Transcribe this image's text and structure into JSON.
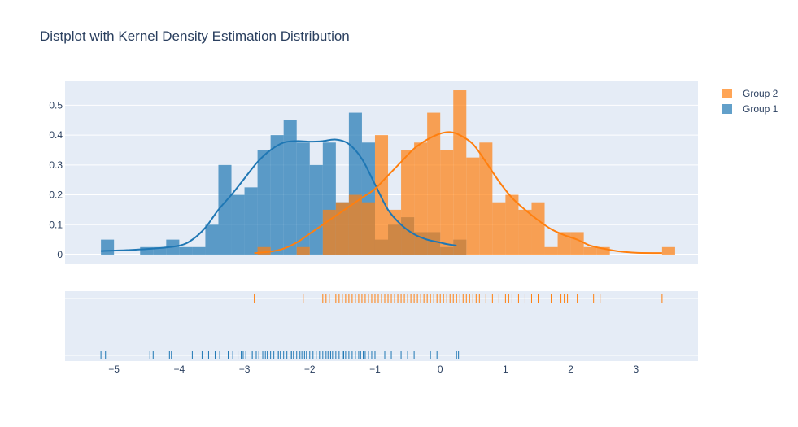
{
  "colors": {
    "background": "#ffffff",
    "plot_bg": "#e5ecf6",
    "grid": "#ffffff",
    "text": "#2a3f5f",
    "group1": "#1f77b4",
    "group2": "#ff7f0e"
  },
  "chart_data": {
    "type": "distplot",
    "title": "Distplot with Kernel Density Estimation Distribution",
    "xlabel": "",
    "ylabel": "",
    "xlim": [
      -5.75,
      3.95
    ],
    "ylim": [
      -0.03,
      0.58
    ],
    "x_ticks": [
      -5,
      -4,
      -3,
      -2,
      -1,
      0,
      1,
      2,
      3
    ],
    "x_tick_labels": [
      "−5",
      "−4",
      "−3",
      "−2",
      "−1",
      "0",
      "1",
      "2",
      "3"
    ],
    "y_ticks": [
      0,
      0.1,
      0.2,
      0.3,
      0.4,
      0.5
    ],
    "y_tick_labels": [
      "0",
      "0.1",
      "0.2",
      "0.3",
      "0.4",
      "0.5"
    ],
    "grid": true,
    "legend_position": "top-right",
    "legend": [
      "Group 2",
      "Group 1"
    ],
    "bin_size": 0.2,
    "series": [
      {
        "name": "Group 1",
        "color": "#1f77b4",
        "hist_bins": [
          [
            -5.2,
            -5.0,
            0.05
          ],
          [
            -4.6,
            -4.4,
            0.025
          ],
          [
            -4.4,
            -4.2,
            0.025
          ],
          [
            -4.2,
            -4.0,
            0.05
          ],
          [
            -4.0,
            -3.8,
            0.025
          ],
          [
            -3.8,
            -3.6,
            0.025
          ],
          [
            -3.6,
            -3.4,
            0.1
          ],
          [
            -3.4,
            -3.2,
            0.3
          ],
          [
            -3.2,
            -3.0,
            0.2
          ],
          [
            -3.0,
            -2.8,
            0.225
          ],
          [
            -2.8,
            -2.6,
            0.35
          ],
          [
            -2.6,
            -2.4,
            0.4
          ],
          [
            -2.4,
            -2.2,
            0.45
          ],
          [
            -2.2,
            -2.0,
            0.375
          ],
          [
            -2.0,
            -1.8,
            0.3
          ],
          [
            -1.8,
            -1.6,
            0.375
          ],
          [
            -1.6,
            -1.4,
            0.175
          ],
          [
            -1.4,
            -1.2,
            0.475
          ],
          [
            -1.2,
            -1.0,
            0.375
          ],
          [
            -1.0,
            -0.8,
            0.05
          ],
          [
            -0.8,
            -0.6,
            0.1
          ],
          [
            -0.6,
            -0.4,
            0.125
          ],
          [
            -0.4,
            -0.2,
            0.075
          ],
          [
            -0.2,
            0.0,
            0.075
          ],
          [
            0.0,
            0.2,
            0.025
          ],
          [
            0.2,
            0.4,
            0.05
          ]
        ],
        "kde": [
          [
            -5.2,
            0.012
          ],
          [
            -4.8,
            0.015
          ],
          [
            -4.4,
            0.02
          ],
          [
            -4.0,
            0.03
          ],
          [
            -3.8,
            0.05
          ],
          [
            -3.6,
            0.09
          ],
          [
            -3.4,
            0.15
          ],
          [
            -3.2,
            0.2
          ],
          [
            -3.0,
            0.255
          ],
          [
            -2.8,
            0.31
          ],
          [
            -2.6,
            0.35
          ],
          [
            -2.4,
            0.375
          ],
          [
            -2.2,
            0.38
          ],
          [
            -2.0,
            0.378
          ],
          [
            -1.8,
            0.38
          ],
          [
            -1.6,
            0.385
          ],
          [
            -1.4,
            0.37
          ],
          [
            -1.2,
            0.32
          ],
          [
            -1.0,
            0.235
          ],
          [
            -0.8,
            0.15
          ],
          [
            -0.6,
            0.1
          ],
          [
            -0.4,
            0.068
          ],
          [
            -0.2,
            0.05
          ],
          [
            0.0,
            0.04
          ],
          [
            0.1,
            0.035
          ],
          [
            0.25,
            0.03
          ]
        ],
        "rug": [
          -5.2,
          -5.13,
          -4.45,
          -4.4,
          -4.15,
          -4.12,
          -3.8,
          -3.65,
          -3.55,
          -3.45,
          -3.38,
          -3.3,
          -3.25,
          -3.18,
          -3.1,
          -3.05,
          -3.02,
          -2.98,
          -2.9,
          -2.88,
          -2.82,
          -2.78,
          -2.72,
          -2.68,
          -2.65,
          -2.6,
          -2.55,
          -2.5,
          -2.48,
          -2.45,
          -2.4,
          -2.35,
          -2.3,
          -2.28,
          -2.25,
          -2.2,
          -2.15,
          -2.12,
          -2.08,
          -2.05,
          -2.0,
          -1.95,
          -1.9,
          -1.85,
          -1.8,
          -1.75,
          -1.72,
          -1.68,
          -1.65,
          -1.6,
          -1.55,
          -1.5,
          -1.48,
          -1.45,
          -1.4,
          -1.35,
          -1.3,
          -1.25,
          -1.22,
          -1.18,
          -1.15,
          -1.1,
          -1.05,
          -1.0,
          -0.85,
          -0.75,
          -0.6,
          -0.5,
          -0.4,
          -0.15,
          -0.05,
          0.25,
          0.28
        ]
      },
      {
        "name": "Group 2",
        "color": "#ff7f0e",
        "hist_bins": [
          [
            -2.8,
            -2.6,
            0.025
          ],
          [
            -2.2,
            -2.0,
            0.025
          ],
          [
            -1.8,
            -1.6,
            0.15
          ],
          [
            -1.6,
            -1.4,
            0.175
          ],
          [
            -1.4,
            -1.2,
            0.2
          ],
          [
            -1.2,
            -1.0,
            0.175
          ],
          [
            -1.0,
            -0.8,
            0.4
          ],
          [
            -0.8,
            -0.6,
            0.15
          ],
          [
            -0.6,
            -0.4,
            0.35
          ],
          [
            -0.4,
            -0.2,
            0.375
          ],
          [
            -0.2,
            0.0,
            0.475
          ],
          [
            0.0,
            0.2,
            0.35
          ],
          [
            0.2,
            0.4,
            0.55
          ],
          [
            0.4,
            0.6,
            0.325
          ],
          [
            0.6,
            0.8,
            0.375
          ],
          [
            0.8,
            1.0,
            0.175
          ],
          [
            1.0,
            1.2,
            0.2
          ],
          [
            1.2,
            1.4,
            0.15
          ],
          [
            1.4,
            1.6,
            0.175
          ],
          [
            1.6,
            1.8,
            0.025
          ],
          [
            1.8,
            2.0,
            0.075
          ],
          [
            2.0,
            2.2,
            0.075
          ],
          [
            2.2,
            2.4,
            0.025
          ],
          [
            2.4,
            2.6,
            0.025
          ],
          [
            3.4,
            3.6,
            0.025
          ]
        ],
        "kde": [
          [
            -2.85,
            0.005
          ],
          [
            -2.6,
            0.01
          ],
          [
            -2.4,
            0.02
          ],
          [
            -2.2,
            0.04
          ],
          [
            -2.0,
            0.07
          ],
          [
            -1.8,
            0.1
          ],
          [
            -1.6,
            0.13
          ],
          [
            -1.4,
            0.16
          ],
          [
            -1.2,
            0.19
          ],
          [
            -1.0,
            0.22
          ],
          [
            -0.8,
            0.265
          ],
          [
            -0.6,
            0.31
          ],
          [
            -0.4,
            0.355
          ],
          [
            -0.2,
            0.385
          ],
          [
            0.0,
            0.405
          ],
          [
            0.15,
            0.41
          ],
          [
            0.3,
            0.4
          ],
          [
            0.5,
            0.37
          ],
          [
            0.7,
            0.31
          ],
          [
            0.9,
            0.245
          ],
          [
            1.1,
            0.19
          ],
          [
            1.3,
            0.15
          ],
          [
            1.5,
            0.115
          ],
          [
            1.7,
            0.085
          ],
          [
            1.9,
            0.065
          ],
          [
            2.1,
            0.05
          ],
          [
            2.3,
            0.03
          ],
          [
            2.5,
            0.02
          ],
          [
            2.7,
            0.012
          ],
          [
            3.0,
            0.006
          ],
          [
            3.4,
            0.005
          ]
        ],
        "rug": [
          -2.85,
          -2.1,
          -1.8,
          -1.75,
          -1.7,
          -1.6,
          -1.55,
          -1.5,
          -1.45,
          -1.4,
          -1.35,
          -1.3,
          -1.25,
          -1.2,
          -1.15,
          -1.1,
          -1.05,
          -1.0,
          -0.95,
          -0.9,
          -0.85,
          -0.8,
          -0.75,
          -0.7,
          -0.65,
          -0.6,
          -0.55,
          -0.5,
          -0.45,
          -0.4,
          -0.35,
          -0.3,
          -0.25,
          -0.2,
          -0.15,
          -0.1,
          -0.05,
          0.0,
          0.05,
          0.1,
          0.15,
          0.2,
          0.25,
          0.3,
          0.35,
          0.4,
          0.45,
          0.5,
          0.55,
          0.6,
          0.7,
          0.8,
          0.9,
          1.0,
          1.05,
          1.1,
          1.2,
          1.3,
          1.4,
          1.5,
          1.7,
          1.85,
          1.9,
          1.95,
          2.1,
          2.35,
          2.45,
          3.4
        ]
      }
    ]
  }
}
